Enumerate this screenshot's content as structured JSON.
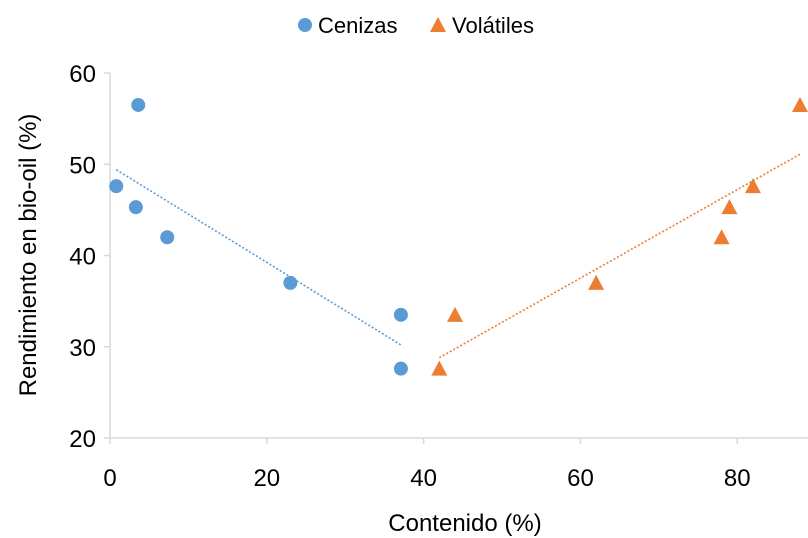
{
  "chart_data": {
    "type": "scatter",
    "title": "",
    "xlabel": "Contenido (%)",
    "ylabel": "Rendimiento en bio-oil (%)",
    "xlim": [
      0,
      88
    ],
    "ylim": [
      20,
      60
    ],
    "xticks": [
      0,
      20,
      40,
      60,
      80
    ],
    "yticks": [
      20,
      30,
      40,
      50,
      60
    ],
    "grid": false,
    "legend_position": "top-center",
    "series": [
      {
        "name": "Cenizas",
        "marker": "circle",
        "color": "#5B9BD5",
        "points": [
          {
            "x": 0.8,
            "y": 47.6
          },
          {
            "x": 3.3,
            "y": 45.3
          },
          {
            "x": 3.6,
            "y": 56.5
          },
          {
            "x": 7.3,
            "y": 42.0
          },
          {
            "x": 23.0,
            "y": 37.0
          },
          {
            "x": 37.1,
            "y": 33.5
          },
          {
            "x": 37.1,
            "y": 27.6
          }
        ],
        "trendline": {
          "style": "dotted",
          "from": {
            "x": 0.8,
            "y": 49.4
          },
          "to": {
            "x": 37.1,
            "y": 30.2
          }
        }
      },
      {
        "name": "Volátiles",
        "marker": "triangle",
        "color": "#ED7D31",
        "points": [
          {
            "x": 42.0,
            "y": 27.6
          },
          {
            "x": 44.0,
            "y": 33.5
          },
          {
            "x": 62.0,
            "y": 37.0
          },
          {
            "x": 78.0,
            "y": 42.0
          },
          {
            "x": 79.0,
            "y": 45.3
          },
          {
            "x": 82.0,
            "y": 47.6
          },
          {
            "x": 88.0,
            "y": 56.5
          }
        ],
        "trendline": {
          "style": "dotted",
          "from": {
            "x": 42.0,
            "y": 28.8
          },
          "to": {
            "x": 88.0,
            "y": 51.1
          }
        }
      }
    ]
  }
}
